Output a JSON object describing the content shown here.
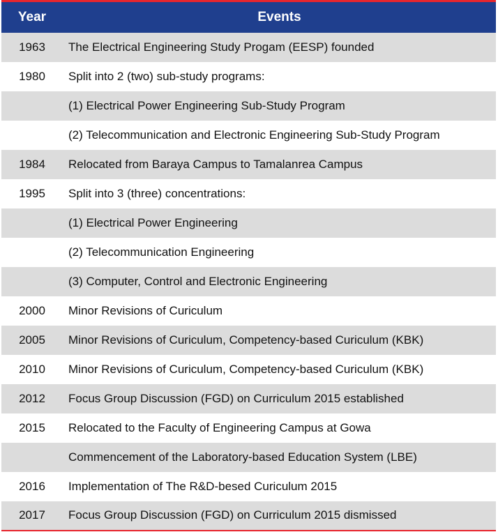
{
  "headers": {
    "year": "Year",
    "events": "Events"
  },
  "rows": [
    {
      "year": "1963",
      "event": "The Electrical Engineering Study Progam (EESP) founded"
    },
    {
      "year": "1980",
      "event": "Split into 2 (two) sub-study programs:"
    },
    {
      "year": "",
      "event": "(1) Electrical Power Engineering Sub-Study Program"
    },
    {
      "year": "",
      "event": "(2) Telecommunication and Electronic Engineering Sub-Study Program"
    },
    {
      "year": "1984",
      "event": "Relocated from Baraya Campus to Tamalanrea Campus"
    },
    {
      "year": "1995",
      "event": "Split into 3 (three) concentrations:"
    },
    {
      "year": "",
      "event": "(1) Electrical Power Engineering"
    },
    {
      "year": "",
      "event": "(2) Telecommunication Engineering"
    },
    {
      "year": "",
      "event": "(3) Computer, Control and Electronic Engineering"
    },
    {
      "year": "2000",
      "event": "Minor Revisions of Curiculum"
    },
    {
      "year": "2005",
      "event": "Minor Revisions of Curiculum, Competency-based Curiculum (KBK)"
    },
    {
      "year": "2010",
      "event": "Minor Revisions of Curiculum, Competency-based Curiculum (KBK)"
    },
    {
      "year": "2012",
      "event": "Focus Group Discussion (FGD) on Curriculum 2015 established"
    },
    {
      "year": "2015",
      "event": "Relocated to the Faculty of Engineering Campus at Gowa"
    },
    {
      "year": "",
      "event": "Commencement of the Laboratory-based Education System (LBE)"
    },
    {
      "year": "2016",
      "event": "Implementation of The R&D-besed Curiculum 2015"
    },
    {
      "year": "2017",
      "event": "Focus Group Discussion (FGD) on Curriculum 2015 dismissed"
    }
  ],
  "colors": {
    "header_bg": "#1f3f8e",
    "accent_red": "#e8262e",
    "row_shade": "#dcdcdc"
  }
}
